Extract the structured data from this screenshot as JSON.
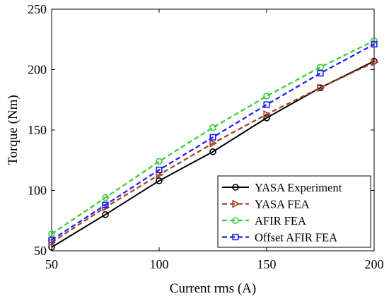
{
  "chart_data": {
    "type": "line",
    "xlabel": "Current rms (A)",
    "ylabel": "Torque (Nm)",
    "xlim": [
      50,
      200
    ],
    "ylim": [
      50,
      250
    ],
    "xticks": [
      50,
      100,
      150,
      200
    ],
    "yticks": [
      50,
      100,
      150,
      200,
      250
    ],
    "grid": false,
    "legend_position": "bottom-right",
    "series": [
      {
        "name": "YASA Experiment",
        "color": "#000000",
        "line": "solid",
        "marker": "circle",
        "x": [
          50,
          75,
          100,
          125,
          150,
          175,
          200
        ],
        "y": [
          53,
          80,
          108,
          132,
          160,
          185,
          207
        ]
      },
      {
        "name": "YASA FEA",
        "color": "#a0401e",
        "line": "dashed",
        "marker": "triangle-right",
        "x": [
          50,
          75,
          100,
          125,
          150,
          175,
          200
        ],
        "y": [
          57,
          86,
          113,
          139,
          163,
          185,
          206
        ]
      },
      {
        "name": "AFIR FEA",
        "color": "#33cc33",
        "line": "dashed",
        "marker": "circle",
        "x": [
          50,
          75,
          100,
          125,
          150,
          175,
          200
        ],
        "y": [
          64,
          94,
          124,
          152,
          178,
          202,
          224
        ]
      },
      {
        "name": "Offset AFIR FEA",
        "color": "#1a1aff",
        "line": "dashed",
        "marker": "square",
        "x": [
          50,
          75,
          100,
          125,
          150,
          175,
          200
        ],
        "y": [
          59,
          88,
          117,
          144,
          171,
          197,
          221
        ]
      }
    ]
  }
}
